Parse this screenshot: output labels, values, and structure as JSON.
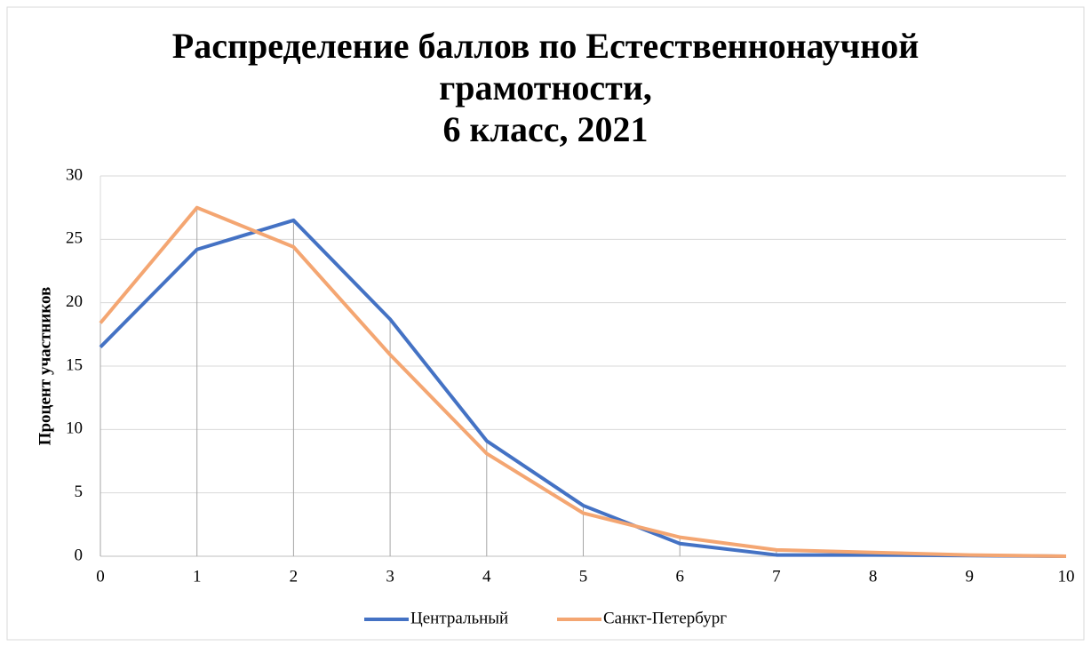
{
  "chart_data": {
    "type": "line",
    "title": [
      "Распределение баллов по Естественнонаучной",
      "грамотности,",
      "6 класс, 2021"
    ],
    "y_label": "Процент участников",
    "x": [
      0,
      1,
      2,
      3,
      4,
      5,
      6,
      7,
      8,
      9,
      10
    ],
    "series": [
      {
        "name": "Центральный",
        "color": "#4472c4",
        "values": [
          16.5,
          24.2,
          26.5,
          18.7,
          9.1,
          4.0,
          1.0,
          0.1,
          0.1,
          0.05,
          0
        ]
      },
      {
        "name": "Санкт-Петербург",
        "color": "#f4a672",
        "values": [
          18.4,
          27.5,
          24.4,
          15.9,
          8.1,
          3.4,
          1.5,
          0.5,
          0.3,
          0.1,
          0
        ]
      }
    ],
    "xlim": [
      0,
      10
    ],
    "xticks": [
      0,
      1,
      2,
      3,
      4,
      5,
      6,
      7,
      8,
      9,
      10
    ],
    "ylim": [
      0,
      30
    ],
    "yticks": [
      0,
      5,
      10,
      15,
      20,
      25,
      30
    ],
    "grid": true,
    "drop_lines": true,
    "legend": "bottom"
  }
}
